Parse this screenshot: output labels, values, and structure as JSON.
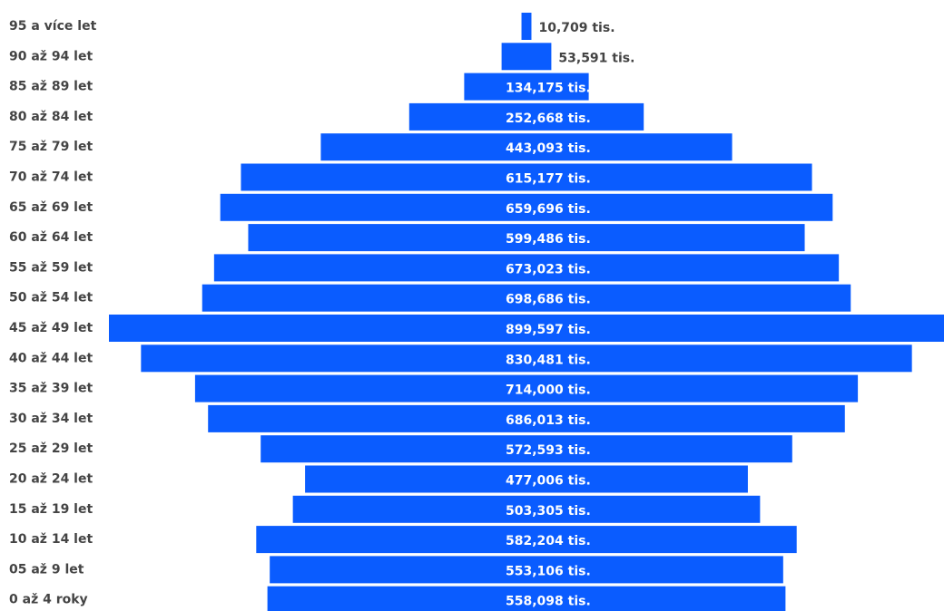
{
  "chart_data": {
    "type": "funnel",
    "color": "#0a5cff",
    "categories": [
      "95 a více let",
      "90 až 94 let",
      "85 až 89 let",
      "80 až 84 let",
      "75 až 79 let",
      "70 až 74 let",
      "65 až 69 let",
      "60 až 64 let",
      "55 až 59 let",
      "50 až 54 let",
      "45 až 49 let",
      "40 až 44 let",
      "35 až 39 let",
      "30 až 34 let",
      "25 až 29 let",
      "20 až 24 let",
      "15 až 19 let",
      "10 až 14 let",
      "05 až 9 let",
      "0 až 4 roky"
    ],
    "values": [
      10.709,
      53.591,
      134.175,
      252.668,
      443.093,
      615.177,
      659.696,
      599.486,
      673.023,
      698.686,
      899.597,
      830.481,
      714.0,
      686.013,
      572.593,
      477.006,
      503.305,
      582.204,
      553.106,
      558.098
    ],
    "value_labels": [
      "10,709 tis.",
      "53,591 tis.",
      "134,175 tis.",
      "252,668 tis.",
      "443,093 tis.",
      "615,177 tis.",
      "659,696 tis.",
      "599,486 tis.",
      "673,023 tis.",
      "698,686 tis.",
      "899,597 tis.",
      "830,481 tis.",
      "714,000 tis.",
      "686,013 tis.",
      "572,593 tis.",
      "477,006 tis.",
      "503,305 tis.",
      "582,204 tis.",
      "553,106 tis.",
      "558,098 tis."
    ]
  }
}
